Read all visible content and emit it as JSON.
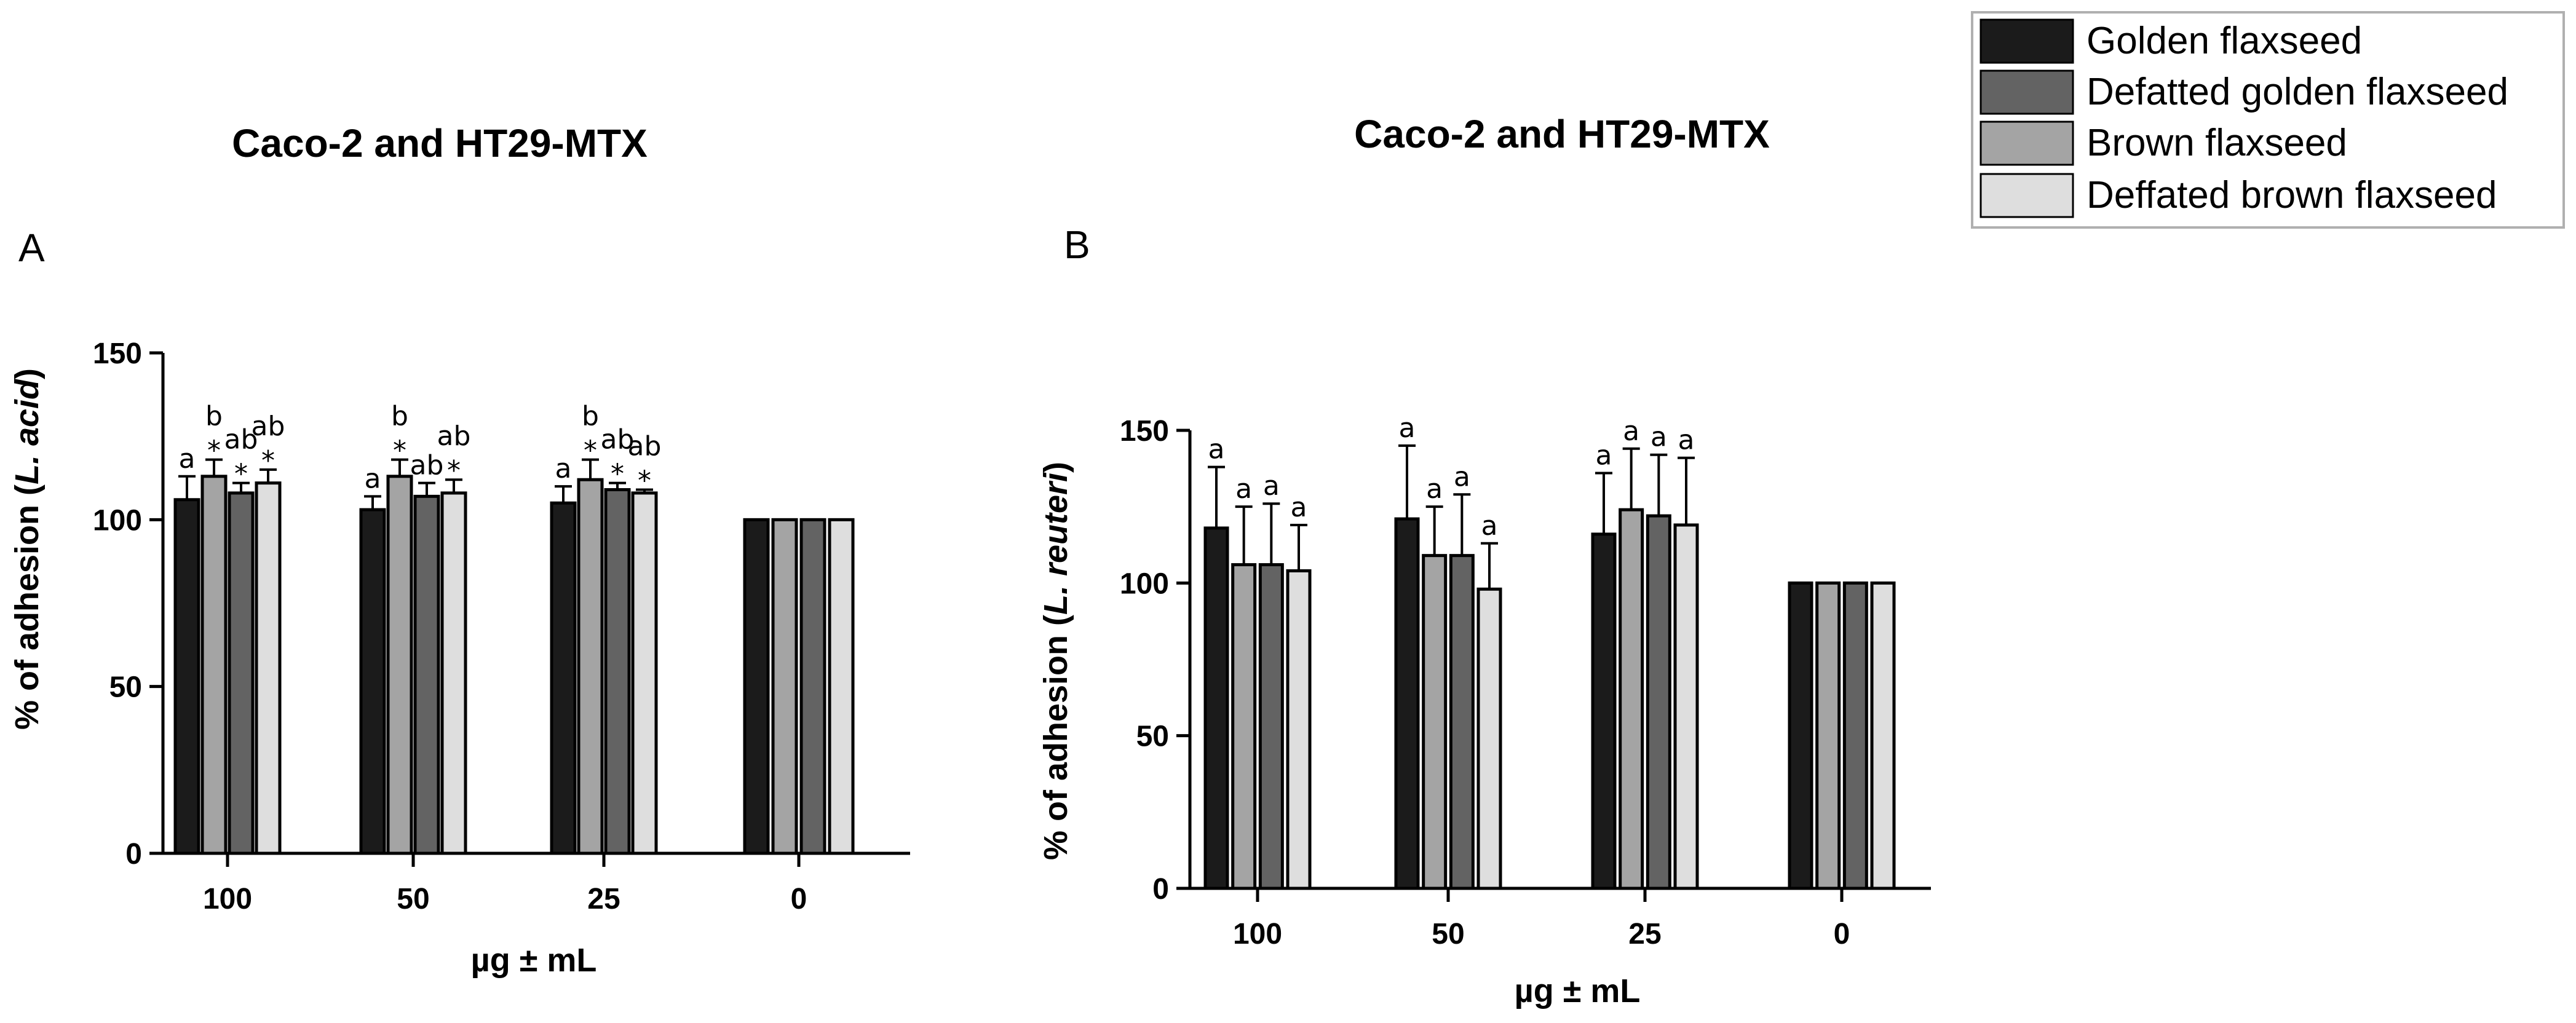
{
  "colors": {
    "golden": "#1b1b1b",
    "defatted_golden": "#636363",
    "brown": "#a4a4a4",
    "defatted_brown": "#dedede",
    "axis": "#000000"
  },
  "legend": {
    "items": [
      {
        "label": "Golden flaxseed",
        "color": "#1b1b1b"
      },
      {
        "label": "Defatted golden flaxseed",
        "color": "#636363"
      },
      {
        "label": "Brown flaxseed",
        "color": "#a4a4a4"
      },
      {
        "label": "Deffated brown flaxseed",
        "color": "#dedede"
      }
    ]
  },
  "chart_data": [
    {
      "type": "bar",
      "panel": "A",
      "title": "Caco-2 and HT29-MTX",
      "xlabel": "µg ± mL",
      "ylabel_prefix": "% of adhesion (",
      "ylabel_species": "L. acid",
      "ylabel_suffix": ")",
      "ylim": [
        0,
        150
      ],
      "yticks": [
        0,
        50,
        100,
        150
      ],
      "categories": [
        "100",
        "50",
        "25",
        "0"
      ],
      "series": [
        {
          "name": "Golden flaxseed",
          "values": [
            106,
            103,
            105,
            100
          ],
          "errors": [
            7,
            4,
            5,
            0
          ],
          "letters": [
            "a",
            "a",
            "a",
            ""
          ],
          "stars": [
            false,
            false,
            false,
            false
          ]
        },
        {
          "name": "Brown flaxseed",
          "values": [
            113,
            113,
            112,
            100
          ],
          "errors": [
            5,
            5,
            6,
            0
          ],
          "letters": [
            "b",
            "b",
            "b",
            ""
          ],
          "stars": [
            true,
            true,
            true,
            false
          ]
        },
        {
          "name": "Defatted golden flaxseed",
          "values": [
            108,
            107,
            109,
            100
          ],
          "errors": [
            3,
            4,
            2,
            0
          ],
          "letters": [
            "ab",
            "ab",
            "ab",
            ""
          ],
          "stars": [
            true,
            false,
            true,
            false
          ]
        },
        {
          "name": "Deffated brown flaxseed",
          "values": [
            111,
            108,
            108,
            100
          ],
          "errors": [
            4,
            4,
            1,
            0
          ],
          "letters": [
            "ab",
            "ab",
            "ab",
            ""
          ],
          "stars": [
            true,
            true,
            true,
            false
          ]
        }
      ]
    },
    {
      "type": "bar",
      "panel": "B",
      "title": "Caco-2 and HT29-MTX",
      "xlabel": "µg ± mL",
      "ylabel_prefix": "% of adhesion (",
      "ylabel_species": "L. reuteri",
      "ylabel_suffix": ")",
      "ylim": [
        0,
        150
      ],
      "yticks": [
        0,
        50,
        100,
        150
      ],
      "categories": [
        "100",
        "50",
        "25",
        "0"
      ],
      "series": [
        {
          "name": "Golden flaxseed",
          "values": [
            118,
            121,
            116,
            100
          ],
          "errors": [
            20,
            24,
            20,
            0
          ],
          "letters": [
            "a",
            "a",
            "a",
            ""
          ],
          "stars": [
            false,
            false,
            false,
            false
          ]
        },
        {
          "name": "Brown flaxseed",
          "values": [
            106,
            109,
            124,
            100
          ],
          "errors": [
            19,
            16,
            20,
            0
          ],
          "letters": [
            "a",
            "a",
            "a",
            ""
          ],
          "stars": [
            false,
            false,
            false,
            false
          ]
        },
        {
          "name": "Defatted golden flaxseed",
          "values": [
            106,
            109,
            122,
            100
          ],
          "errors": [
            20,
            20,
            20,
            0
          ],
          "letters": [
            "a",
            "a",
            "a",
            ""
          ],
          "stars": [
            false,
            false,
            false,
            false
          ]
        },
        {
          "name": "Deffated brown flaxseed",
          "values": [
            104,
            98,
            119,
            100
          ],
          "errors": [
            15,
            15,
            22,
            0
          ],
          "letters": [
            "a",
            "a",
            "a",
            ""
          ],
          "stars": [
            false,
            false,
            false,
            false
          ]
        }
      ]
    }
  ]
}
